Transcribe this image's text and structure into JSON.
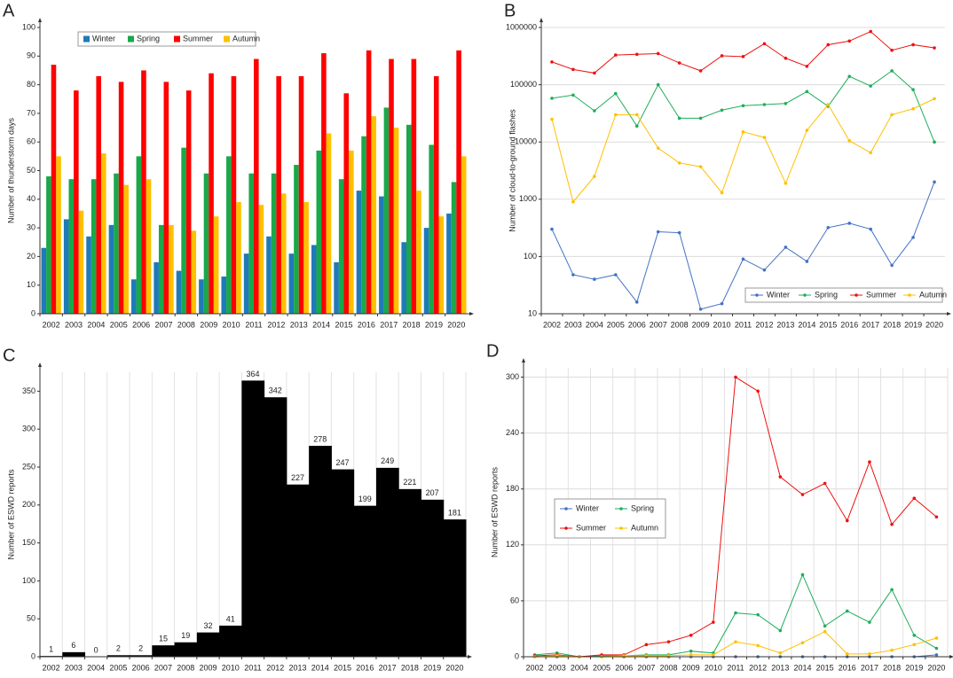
{
  "chart_data": [
    {
      "label": "A",
      "type": "bar",
      "ylabel": "Number of thunderstorm days",
      "grid": false,
      "legend": "top-left",
      "categories": [
        "2002",
        "2003",
        "2004",
        "2005",
        "2006",
        "2007",
        "2008",
        "2009",
        "2010",
        "2011",
        "2012",
        "2013",
        "2014",
        "2015",
        "2016",
        "2017",
        "2018",
        "2019",
        "2020"
      ],
      "ylim": [
        0,
        100
      ],
      "yticks": [
        0,
        10,
        20,
        30,
        40,
        50,
        60,
        70,
        80,
        90,
        100
      ],
      "series": [
        {
          "name": "Winter",
          "color": "#1f7ab8",
          "values": [
            23,
            33,
            27,
            31,
            12,
            18,
            15,
            12,
            13,
            21,
            27,
            21,
            24,
            18,
            43,
            41,
            25,
            30,
            35
          ]
        },
        {
          "name": "Spring",
          "color": "#19a84a",
          "values": [
            48,
            47,
            47,
            49,
            55,
            31,
            58,
            49,
            55,
            49,
            49,
            52,
            57,
            47,
            62,
            72,
            66,
            59,
            46
          ]
        },
        {
          "name": "Summer",
          "color": "#ff0000",
          "values": [
            87,
            78,
            83,
            81,
            85,
            81,
            78,
            84,
            83,
            89,
            83,
            83,
            91,
            77,
            92,
            89,
            89,
            83,
            92
          ]
        },
        {
          "name": "Autumn",
          "color": "#ffc000",
          "values": [
            55,
            36,
            56,
            45,
            47,
            31,
            29,
            34,
            39,
            38,
            42,
            39,
            63,
            57,
            69,
            65,
            43,
            34,
            55
          ]
        }
      ]
    },
    {
      "label": "B",
      "type": "line",
      "ylabel": "Number of cloud-to-ground flashes",
      "grid": true,
      "log": true,
      "legend": "bottom-right",
      "categories": [
        "2002",
        "2003",
        "2004",
        "2005",
        "2006",
        "2007",
        "2008",
        "2009",
        "2010",
        "2011",
        "2012",
        "2013",
        "2014",
        "2015",
        "2016",
        "2017",
        "2018",
        "2019",
        "2020"
      ],
      "ylim": [
        10,
        1000000
      ],
      "yticks": [
        10,
        100,
        1000,
        10000,
        100000,
        1000000
      ],
      "series": [
        {
          "name": "Winter",
          "color": "#4472c4",
          "values": [
            300,
            48,
            40,
            48,
            16,
            270,
            260,
            12,
            15,
            90,
            58,
            145,
            82,
            320,
            380,
            300,
            70,
            215,
            2000
          ]
        },
        {
          "name": "Spring",
          "color": "#1fae5a",
          "values": [
            58000,
            66000,
            35000,
            70000,
            19000,
            100000,
            26000,
            26000,
            36000,
            43000,
            45000,
            47000,
            76000,
            42000,
            140000,
            95000,
            175000,
            82000,
            10000
          ]
        },
        {
          "name": "Summer",
          "color": "#ee1111",
          "values": [
            250000,
            185000,
            160000,
            330000,
            340000,
            350000,
            240000,
            175000,
            320000,
            310000,
            520000,
            290000,
            210000,
            500000,
            580000,
            850000,
            400000,
            500000,
            440000
          ]
        },
        {
          "name": "Autumn",
          "color": "#ffc000",
          "values": [
            25000,
            900,
            2500,
            30000,
            30000,
            7800,
            4300,
            3700,
            1300,
            15000,
            12000,
            1900,
            16000,
            45000,
            10500,
            6500,
            30000,
            38000,
            57000
          ]
        }
      ]
    },
    {
      "label": "C",
      "type": "histbar",
      "ylabel": "Number of ESWD reports",
      "grid": true,
      "color": "#000000",
      "categories": [
        "2002",
        "2003",
        "2004",
        "2005",
        "2006",
        "2007",
        "2008",
        "2009",
        "2010",
        "2011",
        "2012",
        "2013",
        "2014",
        "2015",
        "2016",
        "2017",
        "2018",
        "2019",
        "2020"
      ],
      "ylim": [
        0,
        375
      ],
      "yticks": [
        0,
        50,
        100,
        150,
        200,
        250,
        300,
        350
      ],
      "values": [
        1,
        6,
        0,
        2,
        2,
        15,
        19,
        32,
        41,
        364,
        342,
        227,
        278,
        247,
        199,
        249,
        221,
        207,
        181
      ]
    },
    {
      "label": "D",
      "type": "line",
      "ylabel": "Number of ESWD reports",
      "grid": true,
      "legend": "left",
      "categories": [
        "2002",
        "2003",
        "2004",
        "2005",
        "2006",
        "2007",
        "2008",
        "2009",
        "2010",
        "2011",
        "2012",
        "2013",
        "2014",
        "2015",
        "2016",
        "2017",
        "2018",
        "2019",
        "2020"
      ],
      "ylim": [
        0,
        310
      ],
      "yticks": [
        0,
        60,
        120,
        180,
        240,
        300
      ],
      "series": [
        {
          "name": "Winter",
          "color": "#4472c4",
          "values": [
            0,
            0,
            0,
            0,
            0,
            0,
            0,
            0,
            0,
            0,
            0,
            0,
            0,
            0,
            0,
            0,
            0,
            0,
            2
          ]
        },
        {
          "name": "Spring",
          "color": "#1fae5a",
          "values": [
            2,
            4,
            0,
            1,
            1,
            2,
            2,
            6,
            4,
            47,
            45,
            28,
            88,
            33,
            49,
            37,
            72,
            23,
            9
          ]
        },
        {
          "name": "Summer",
          "color": "#ee1111",
          "values": [
            1,
            2,
            0,
            2,
            2,
            13,
            16,
            23,
            37,
            300,
            285,
            193,
            174,
            186,
            146,
            209,
            142,
            170,
            150
          ]
        },
        {
          "name": "Autumn",
          "color": "#ffc000",
          "values": [
            0,
            1,
            0,
            0,
            1,
            1,
            1,
            2,
            2,
            16,
            12,
            4,
            15,
            27,
            3,
            3,
            7,
            13,
            20
          ]
        }
      ]
    }
  ]
}
